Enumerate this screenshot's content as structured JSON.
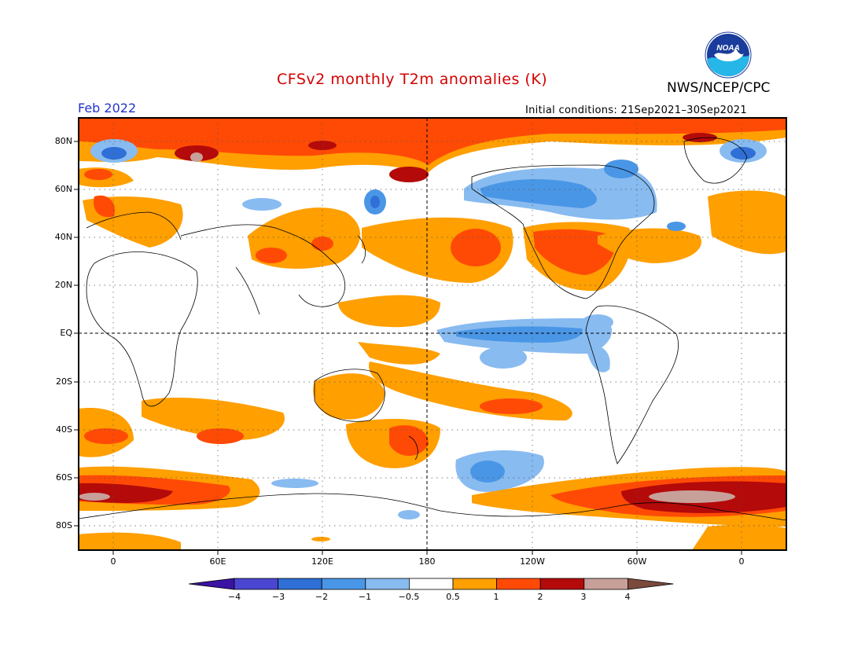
{
  "header": {
    "title": "CFSv2 monthly T2m anomalies (K)",
    "agency": "NWS/NCEP/CPC",
    "month": "Feb 2022",
    "initial_conditions": "Initial conditions: 21Sep2021–30Sep2021",
    "logo_text": "NOAA"
  },
  "axes": {
    "lat_labels": [
      "80N",
      "60N",
      "40N",
      "20N",
      "EQ",
      "20S",
      "40S",
      "60S",
      "80S"
    ],
    "lon_labels": [
      "0",
      "60E",
      "120E",
      "180",
      "120W",
      "60W",
      "0"
    ]
  },
  "colorbar": {
    "labels": [
      "−4",
      "−3",
      "−2",
      "−1",
      "−0.5",
      "0.5",
      "1",
      "2",
      "3",
      "4"
    ],
    "colors": [
      "#3a14a4",
      "#4a46d0",
      "#2f6fd6",
      "#4a96e6",
      "#88bbf0",
      "#ffffff",
      "#ff9f00",
      "#ff4a06",
      "#b40a0a",
      "#c8a09a",
      "#7a4a3c"
    ]
  }
}
